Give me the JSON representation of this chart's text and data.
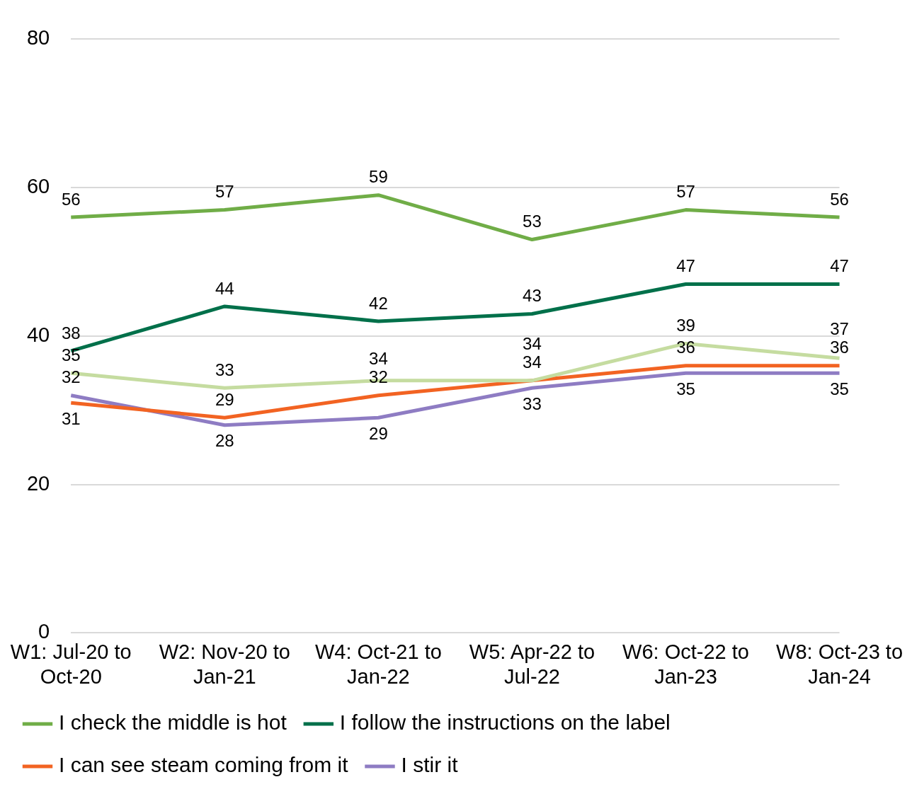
{
  "chart_data": {
    "type": "line",
    "categories": [
      "W1: Jul-20 to Oct-20",
      "W2: Nov-20 to Jan-21",
      "W4: Oct-21 to Jan-22",
      "W5: Apr-22 to Jul-22",
      "W6: Oct-22 to Jan-23",
      "W8: Oct-23 to Jan-24"
    ],
    "series": [
      {
        "name": "I check the middle is hot",
        "color": "#70ad47",
        "values": [
          56,
          57,
          59,
          53,
          57,
          56
        ]
      },
      {
        "name": "I follow the instructions on the label",
        "color": "#00704a",
        "values": [
          38,
          44,
          42,
          43,
          47,
          47
        ]
      },
      {
        "color": "#c5dca0",
        "values": [
          35,
          33,
          34,
          34,
          39,
          37
        ]
      },
      {
        "name": "I can see steam coming from it",
        "color": "#f26322",
        "values": [
          31,
          29,
          32,
          34,
          36,
          36
        ]
      },
      {
        "name": "I stir it",
        "color": "#8e7cc3",
        "values": [
          32,
          28,
          29,
          33,
          35,
          35
        ]
      }
    ],
    "ylim": [
      0,
      80
    ],
    "yticks": [
      0,
      20,
      40,
      60,
      80
    ],
    "grid": "y",
    "legend": "bottom",
    "data_labels": true,
    "marker": "none",
    "line_style": "solid"
  }
}
